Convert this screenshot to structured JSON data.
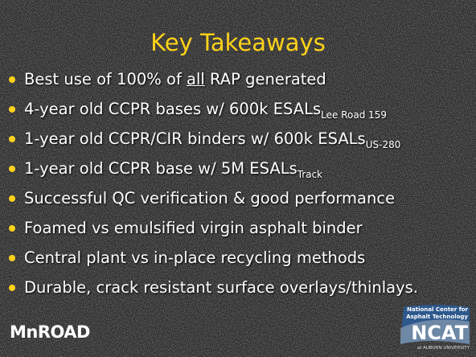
{
  "slide": {
    "title": "Key Takeaways",
    "bullets": [
      [
        {
          "text": "Best use of 100% of "
        },
        {
          "text": "all",
          "style": "underline"
        },
        {
          "text": " RAP generated"
        }
      ],
      [
        {
          "text": "4-year old CCPR bases w/ 600k ESALs"
        },
        {
          "text": "Lee Road 159",
          "style": "sub"
        }
      ],
      [
        {
          "text": "1-year old CCPR/CIR binders w/ 600k ESALs"
        },
        {
          "text": "US-280",
          "style": "sub"
        }
      ],
      [
        {
          "text": "1-year old CCPR base w/ 5M ESALs"
        },
        {
          "text": "Track",
          "style": "sub"
        }
      ],
      [
        {
          "text": "Successful QC verification & good performance"
        }
      ],
      [
        {
          "text": "Foamed vs emulsified virgin asphalt binder"
        }
      ],
      [
        {
          "text": "Central plant vs in-place recycling methods"
        }
      ],
      [
        {
          "text": "Durable, crack resistant surface overlays/thinlays."
        }
      ]
    ],
    "logos": {
      "left": "MnROAD",
      "right": {
        "line1": "National Center for",
        "line2": "Asphalt Technology",
        "name": "NCAT",
        "footer": "at AUBURN UNIVERSITY"
      }
    }
  }
}
